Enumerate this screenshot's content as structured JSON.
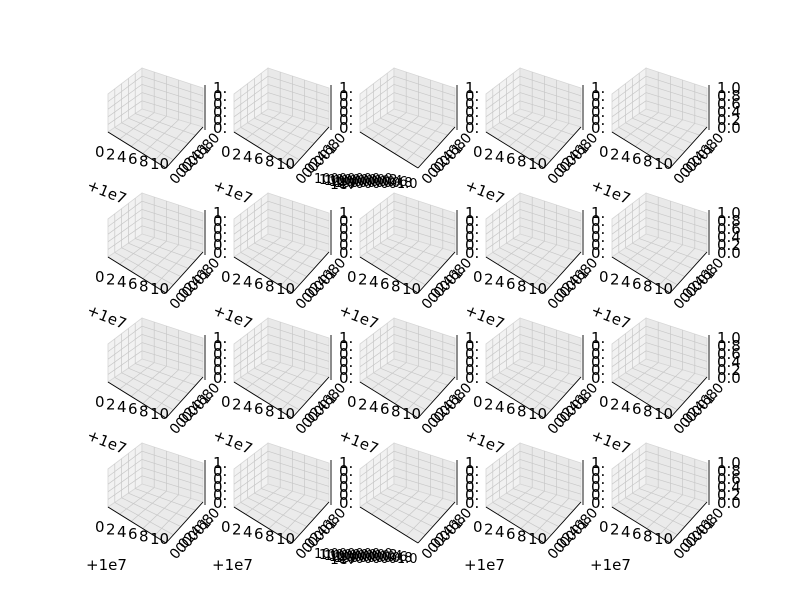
{
  "figure": {
    "layout": {
      "rows": 4,
      "cols": 5
    },
    "colors": {
      "pane_left": "#f2f2f2",
      "pane_right": "#e9e9e9",
      "pane_floor": "#ebebeb",
      "pane_edge": "#d6d6d6",
      "grid": "#c8c8c8",
      "axis_line": "#000000",
      "background": "#ffffff"
    }
  },
  "chart_data": {
    "type": "scatter",
    "projection": "3d",
    "grid": true,
    "n_subplots": 20,
    "xlim": [
      0,
      10
    ],
    "ylim": [
      0,
      1
    ],
    "zlim": [
      0,
      1
    ],
    "x_ticks_common": [
      "0",
      "2",
      "4",
      "6",
      "8",
      "10"
    ],
    "x_offset_text": "+1e7",
    "x_ticks_long": [
      "10000000.0",
      "10000000.2",
      "10000000.4",
      "10000000.6",
      "10000000.8",
      "10000001.0"
    ],
    "x_offset_long": "1e7",
    "y_ticks": [
      "0.0",
      "0.2",
      "0.4",
      "0.6",
      "0.8",
      "1.0"
    ],
    "z_ticks": [
      "0.0",
      "0.2",
      "0.4",
      "0.6",
      "0.8",
      "1.0"
    ],
    "long_x_subplots": [
      2,
      17
    ],
    "full_z_subplots": [
      4,
      9,
      14,
      19
    ],
    "series": []
  }
}
